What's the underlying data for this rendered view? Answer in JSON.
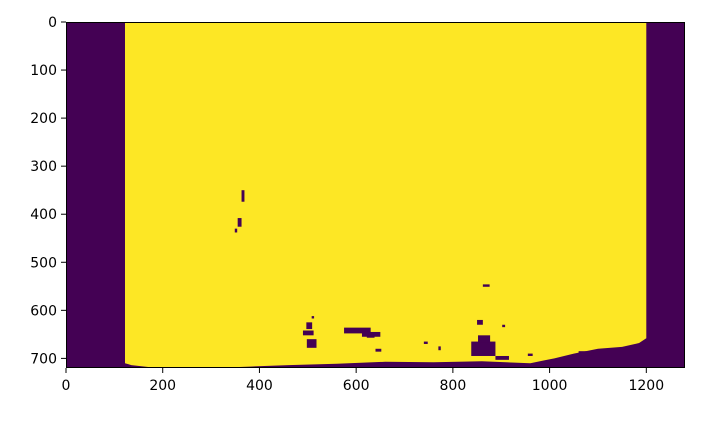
{
  "chart_data": {
    "type": "heatmap",
    "title": "",
    "xlabel": "",
    "ylabel": "",
    "xlim": [
      0,
      1280
    ],
    "ylim": [
      720,
      0
    ],
    "y_axis_inverted": true,
    "x_ticks": [
      0,
      200,
      400,
      600,
      800,
      1000,
      1200
    ],
    "x_tick_labels": [
      "0",
      "200",
      "400",
      "600",
      "800",
      "1000",
      "1200"
    ],
    "y_ticks": [
      0,
      100,
      200,
      300,
      400,
      500,
      600,
      700
    ],
    "y_tick_labels": [
      "0",
      "100",
      "200",
      "300",
      "400",
      "500",
      "600",
      "700"
    ],
    "grid": false,
    "legend": "none",
    "colormap": "viridis",
    "value_colors": {
      "0": "#440154",
      "1": "#fde725"
    },
    "background_value": 0,
    "foreground_value": 1,
    "foreground_region": {
      "x_min": 122,
      "x_max": 1200,
      "top_y": 0,
      "bottom_edge": [
        [
          122,
          710
        ],
        [
          135,
          714
        ],
        [
          170,
          718
        ],
        [
          250,
          720
        ],
        [
          300,
          720
        ],
        [
          380,
          717
        ],
        [
          460,
          714
        ],
        [
          560,
          711
        ],
        [
          660,
          707
        ],
        [
          760,
          708
        ],
        [
          860,
          706
        ],
        [
          960,
          710
        ],
        [
          990,
          704
        ],
        [
          1010,
          700
        ],
        [
          1050,
          690
        ],
        [
          1100,
          680
        ],
        [
          1150,
          676
        ],
        [
          1185,
          668
        ],
        [
          1200,
          658
        ]
      ]
    },
    "background_patches": [
      {
        "x": 363,
        "y": 350,
        "w": 6,
        "h": 24
      },
      {
        "x": 355,
        "y": 408,
        "w": 8,
        "h": 18
      },
      {
        "x": 349,
        "y": 430,
        "w": 5,
        "h": 8
      },
      {
        "x": 497,
        "y": 625,
        "w": 12,
        "h": 14
      },
      {
        "x": 490,
        "y": 642,
        "w": 22,
        "h": 10
      },
      {
        "x": 498,
        "y": 660,
        "w": 20,
        "h": 18
      },
      {
        "x": 508,
        "y": 612,
        "w": 5,
        "h": 5
      },
      {
        "x": 575,
        "y": 636,
        "w": 55,
        "h": 12
      },
      {
        "x": 612,
        "y": 645,
        "w": 38,
        "h": 10
      },
      {
        "x": 622,
        "y": 652,
        "w": 16,
        "h": 5
      },
      {
        "x": 838,
        "y": 665,
        "w": 50,
        "h": 30
      },
      {
        "x": 852,
        "y": 652,
        "w": 25,
        "h": 14
      },
      {
        "x": 850,
        "y": 620,
        "w": 12,
        "h": 10
      },
      {
        "x": 862,
        "y": 546,
        "w": 14,
        "h": 5
      },
      {
        "x": 888,
        "y": 695,
        "w": 28,
        "h": 8
      },
      {
        "x": 770,
        "y": 675,
        "w": 5,
        "h": 8
      },
      {
        "x": 740,
        "y": 665,
        "w": 8,
        "h": 5
      },
      {
        "x": 902,
        "y": 630,
        "w": 6,
        "h": 5
      },
      {
        "x": 640,
        "y": 680,
        "w": 12,
        "h": 6
      },
      {
        "x": 955,
        "y": 690,
        "w": 10,
        "h": 5
      },
      {
        "x": 1060,
        "y": 685,
        "w": 30,
        "h": 8
      }
    ]
  }
}
